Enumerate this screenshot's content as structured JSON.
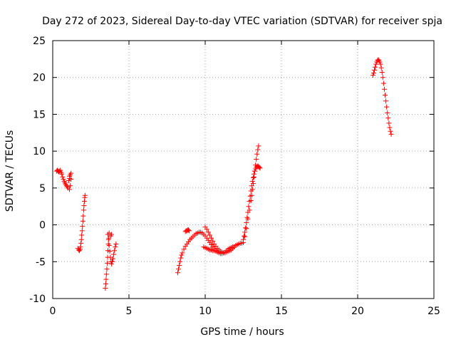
{
  "chart_data": {
    "type": "scatter",
    "title": "Day 272 of 2023, Sidereal Day-to-day VTEC variation (SDTVAR) for receiver spja",
    "xlabel": "GPS time / hours",
    "ylabel": "SDTVAR / TECUs",
    "xlim": [
      0,
      25
    ],
    "ylim": [
      -10,
      25
    ],
    "x_ticks": [
      0,
      5,
      10,
      15,
      20,
      25
    ],
    "y_ticks": [
      -10,
      -5,
      0,
      5,
      10,
      15,
      20,
      25
    ],
    "x_tick_labels": [
      "0",
      "5",
      "10",
      "15",
      "20",
      "25"
    ],
    "y_tick_labels": [
      "-10",
      "-5",
      "0",
      "5",
      "10",
      "15",
      "20",
      "25"
    ],
    "grid": true,
    "marker": "+",
    "color": "#ff0000",
    "segments": [
      {
        "x": [
          0.25,
          0.3,
          0.35,
          0.4,
          0.45,
          0.5,
          0.55,
          0.6,
          0.65,
          0.7,
          0.75,
          0.8,
          0.85,
          0.9,
          0.95,
          1.0
        ],
        "y": [
          7.3,
          7.4,
          7.3,
          7.2,
          7.3,
          7.4,
          7.1,
          6.9,
          6.5,
          6.2,
          5.9,
          5.7,
          5.5,
          5.3,
          5.2,
          5.0
        ]
      },
      {
        "x": [
          1.05,
          1.1,
          1.1,
          1.15,
          1.2,
          1.2,
          1.15,
          1.1
        ],
        "y": [
          6.0,
          6.3,
          6.6,
          6.8,
          7.0,
          6.2,
          5.3,
          4.8
        ]
      },
      {
        "x": [
          1.65,
          1.7,
          1.75,
          1.8,
          1.82,
          1.85,
          1.88,
          1.9,
          1.93,
          1.95,
          1.98,
          2.0,
          2.03,
          2.05,
          2.08,
          2.1,
          2.12
        ],
        "y": [
          -3.2,
          -3.4,
          -3.5,
          -3.3,
          -3.0,
          -2.5,
          -2.0,
          -1.4,
          -0.8,
          -0.2,
          0.5,
          1.2,
          2.0,
          2.6,
          3.2,
          3.7,
          4.0
        ]
      },
      {
        "x": [
          3.45,
          3.48,
          3.5,
          3.52,
          3.55,
          3.58,
          3.6,
          3.62,
          3.65,
          3.68,
          3.7
        ],
        "y": [
          -8.6,
          -8.0,
          -7.4,
          -6.7,
          -6.0,
          -5.2,
          -4.4,
          -3.5,
          -2.6,
          -1.8,
          -1.1
        ]
      },
      {
        "x": [
          3.62,
          3.66,
          3.7,
          3.74,
          3.78,
          3.82,
          3.86,
          3.9
        ],
        "y": [
          -1.3,
          -2.0,
          -2.8,
          -3.6,
          -4.4,
          -5.0,
          -5.3,
          -5.0
        ]
      },
      {
        "x": [
          3.8,
          3.85,
          3.9,
          3.95,
          4.0,
          4.05,
          4.1,
          4.15
        ],
        "y": [
          -1.5,
          -1.3,
          -5.0,
          -4.6,
          -4.0,
          -3.5,
          -3.0,
          -2.6
        ]
      },
      {
        "x": [
          8.2,
          8.25,
          8.3,
          8.35,
          8.4,
          8.45,
          8.5,
          8.6,
          8.7,
          8.8,
          8.9,
          9.0,
          9.1,
          9.2,
          9.3,
          9.4,
          9.5,
          9.6,
          9.7,
          9.8,
          9.9,
          10.0,
          10.1,
          10.2,
          10.3,
          10.4,
          10.5,
          10.6,
          10.7,
          10.8,
          10.9,
          11.0,
          11.1,
          11.2,
          11.3,
          11.4,
          11.5,
          11.6,
          11.7,
          11.8,
          11.9
        ],
        "y": [
          -6.5,
          -6.0,
          -5.5,
          -5.0,
          -4.5,
          -4.1,
          -3.8,
          -3.3,
          -2.9,
          -2.6,
          -2.3,
          -2.0,
          -1.8,
          -1.6,
          -1.4,
          -1.2,
          -1.1,
          -1.0,
          -1.0,
          -1.1,
          -1.3,
          -1.5,
          -1.8,
          -2.1,
          -2.4,
          -2.7,
          -3.0,
          -3.3,
          -3.5,
          -3.7,
          -3.8,
          -3.9,
          -3.9,
          -3.8,
          -3.7,
          -3.5,
          -3.3,
          -3.2,
          -3.1,
          -3.0,
          -3.0
        ]
      },
      {
        "x": [
          8.7,
          8.75,
          8.8,
          8.85,
          8.9,
          8.95
        ],
        "y": [
          -0.9,
          -0.8,
          -0.8,
          -0.7,
          -0.7,
          -0.8
        ]
      },
      {
        "x": [
          10.0,
          10.1,
          10.2,
          10.3,
          10.4,
          10.5,
          10.6,
          10.7,
          10.8,
          10.9,
          11.0,
          11.1,
          11.2,
          11.3,
          11.4,
          11.5,
          11.6,
          11.7,
          11.8,
          11.9,
          12.0,
          12.1,
          12.2,
          12.3,
          12.4,
          12.5
        ],
        "y": [
          -0.3,
          -0.6,
          -1.0,
          -1.4,
          -1.8,
          -2.2,
          -2.6,
          -2.9,
          -3.2,
          -3.4,
          -3.6,
          -3.7,
          -3.8,
          -3.8,
          -3.7,
          -3.6,
          -3.5,
          -3.4,
          -3.2,
          -3.0,
          -2.8,
          -2.7,
          -2.6,
          -2.5,
          -2.5,
          -2.4
        ]
      },
      {
        "x": [
          9.9,
          10.0,
          10.1,
          10.2,
          10.3,
          10.4,
          10.5,
          10.6,
          10.7
        ],
        "y": [
          -3.0,
          -3.1,
          -3.2,
          -3.3,
          -3.4,
          -3.4,
          -3.5,
          -3.5,
          -3.6
        ]
      },
      {
        "x": [
          12.5,
          12.55,
          12.6,
          12.65,
          12.7,
          12.75,
          12.8,
          12.85,
          12.9,
          12.95,
          13.0,
          13.05,
          13.1,
          13.15,
          13.2,
          13.25,
          13.3,
          13.35,
          13.4,
          13.45,
          13.5,
          13.55,
          13.6
        ],
        "y": [
          -2.0,
          -1.5,
          -1.0,
          -0.4,
          0.3,
          1.0,
          1.7,
          2.5,
          3.2,
          3.9,
          4.6,
          5.3,
          5.9,
          6.4,
          6.9,
          7.3,
          7.6,
          7.8,
          7.9,
          8.0,
          7.9,
          7.8,
          7.7
        ]
      },
      {
        "x": [
          12.6,
          12.7,
          12.8,
          12.9,
          13.0,
          13.05,
          13.1,
          13.15,
          13.2,
          13.25,
          13.3,
          13.35,
          13.4,
          13.45,
          13.5
        ],
        "y": [
          -1.6,
          -0.5,
          0.8,
          2.0,
          3.3,
          4.0,
          4.8,
          5.6,
          6.5,
          7.3,
          8.1,
          8.9,
          9.6,
          10.2,
          10.7
        ]
      },
      {
        "x": [
          21.0,
          21.05,
          21.1,
          21.15,
          21.2,
          21.25,
          21.3,
          21.35,
          21.4,
          21.45,
          21.5,
          21.55,
          21.6,
          21.65,
          21.7,
          21.75,
          21.8,
          21.85,
          21.9,
          21.95,
          22.0,
          22.05,
          22.1,
          22.15,
          22.2
        ],
        "y": [
          20.3,
          20.6,
          21.0,
          21.4,
          21.8,
          22.1,
          22.3,
          22.4,
          22.3,
          22.1,
          21.8,
          21.3,
          20.7,
          20.0,
          19.2,
          18.4,
          17.6,
          16.8,
          16.0,
          15.2,
          14.5,
          13.8,
          13.2,
          12.7,
          12.3
        ]
      }
    ]
  }
}
